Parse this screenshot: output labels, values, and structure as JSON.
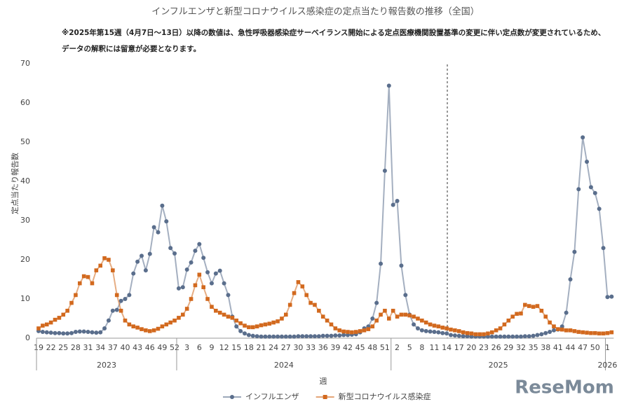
{
  "chart_data": {
    "type": "line",
    "title": "インフルエンザと新型コロナウイルス感染症の定点当たり報告数の推移（全国）",
    "notes": [
      "※2025年第15週（4月7日～13日）以降の数値は、急性呼吸器感染症サーベイランス開始による定点医療機関設置基準の変更に伴い定点数が変更されているため、",
      "データの解釈には留意が必要となります。"
    ],
    "y_label": "定点当たり報告数",
    "x_label": "週",
    "years": [
      "2023",
      "2024",
      "2025",
      "2026"
    ],
    "watermark": "ReseMom",
    "categories": [
      "19",
      null,
      null,
      "22",
      null,
      null,
      "25",
      null,
      null,
      "28",
      null,
      null,
      "31",
      null,
      null,
      "34",
      null,
      null,
      "37",
      null,
      null,
      "40",
      null,
      null,
      "43",
      null,
      null,
      "46",
      null,
      null,
      "49",
      null,
      null,
      "52",
      null,
      null,
      "3",
      null,
      null,
      "6",
      null,
      null,
      "9",
      null,
      null,
      "12",
      null,
      null,
      "15",
      null,
      null,
      "18",
      null,
      null,
      "21",
      null,
      null,
      "24",
      null,
      null,
      "27",
      null,
      null,
      "30",
      null,
      null,
      "33",
      null,
      null,
      "36",
      null,
      null,
      "39",
      null,
      null,
      "42",
      null,
      null,
      "45",
      null,
      null,
      "48",
      null,
      null,
      "51",
      null,
      null,
      "2",
      null,
      null,
      "5",
      null,
      null,
      "8",
      null,
      null,
      "11",
      null,
      null,
      "14",
      null,
      null,
      "17",
      null,
      null,
      "20",
      null,
      null,
      "23",
      null,
      null,
      "26",
      null,
      null,
      "29",
      null,
      null,
      "32",
      null,
      null,
      "35",
      null,
      null,
      "38",
      null,
      null,
      "41",
      null,
      null,
      "44",
      null,
      null,
      "47",
      null,
      null,
      "50",
      null,
      null,
      "1",
      null
    ],
    "series": [
      {
        "name": "インフルエンザ",
        "color": "#5a6e8c",
        "marker": "circle",
        "values": [
          1.8,
          1.6,
          1.5,
          1.4,
          1.3,
          1.3,
          1.2,
          1.2,
          1.3,
          1.6,
          1.7,
          1.7,
          1.6,
          1.5,
          1.4,
          1.5,
          2.5,
          4.5,
          7,
          7.2,
          9.5,
          10,
          11,
          16.5,
          19.5,
          21,
          17.3,
          21.5,
          28.3,
          27,
          33.8,
          29.8,
          23,
          21.6,
          12.7,
          13,
          17.5,
          19.3,
          22.3,
          24,
          20.5,
          16.8,
          14,
          16.5,
          17.2,
          14,
          11,
          5.5,
          3,
          1.8,
          1.2,
          0.8,
          0.6,
          0.5,
          0.4,
          0.4,
          0.4,
          0.4,
          0.4,
          0.4,
          0.4,
          0.4,
          0.4,
          0.5,
          0.5,
          0.5,
          0.5,
          0.5,
          0.5,
          0.6,
          0.6,
          0.6,
          0.7,
          0.7,
          0.8,
          0.8,
          0.9,
          1,
          1.5,
          2.5,
          3,
          5,
          9,
          19,
          42.7,
          64.4,
          34,
          35,
          18.5,
          11,
          6,
          3.5,
          2.5,
          2,
          1.8,
          1.7,
          1.6,
          1.5,
          1.3,
          1.2,
          0.8,
          0.7,
          0.6,
          0.5,
          0.5,
          0.4,
          0.4,
          0.4,
          0.4,
          0.4,
          0.4,
          0.4,
          0.4,
          0.4,
          0.4,
          0.4,
          0.4,
          0.4,
          0.5,
          0.5,
          0.6,
          0.8,
          1,
          1.3,
          1.6,
          2,
          2.2,
          3,
          6.5,
          15,
          22,
          38,
          51.2,
          45,
          38.5,
          37,
          33,
          23,
          10.5,
          10.6
        ]
      },
      {
        "name": "新型コロナウイルス感染症",
        "color": "#d2691e",
        "marker": "square",
        "values": [
          2.5,
          3.2,
          3.5,
          4,
          4.7,
          5.2,
          6,
          7,
          9,
          11,
          14,
          15.8,
          15.6,
          14,
          17.3,
          18.5,
          20.4,
          20,
          17.3,
          11,
          7,
          4.5,
          3.5,
          3,
          2.7,
          2.3,
          2,
          1.8,
          2,
          2.4,
          3,
          3.5,
          4,
          4.5,
          5.2,
          6,
          7.5,
          10,
          13.5,
          16.2,
          13,
          10,
          8,
          7,
          6.5,
          6,
          5.5,
          5.2,
          4.5,
          3.8,
          3.2,
          2.8,
          2.8,
          3,
          3.3,
          3.5,
          3.7,
          4,
          4.3,
          5,
          6,
          8.5,
          11.5,
          14.3,
          13.2,
          11,
          9,
          8.5,
          7,
          5.5,
          4.5,
          3.5,
          2.5,
          2,
          1.7,
          1.6,
          1.5,
          1.6,
          1.8,
          2,
          2.3,
          3,
          4.5,
          6,
          7,
          5,
          7,
          5.5,
          6,
          6,
          5.8,
          5.5,
          5,
          4.5,
          4,
          3.5,
          3.2,
          3,
          2.7,
          2.5,
          2.2,
          2,
          1.8,
          1.5,
          1.3,
          1.2,
          1,
          1,
          1,
          1.2,
          1.5,
          2,
          2.5,
          3.5,
          4.5,
          5.5,
          6.2,
          6.3,
          8.5,
          8.2,
          8,
          8.2,
          7,
          5.5,
          4,
          3,
          2.3,
          2.2,
          2,
          2,
          1.8,
          1.6,
          1.5,
          1.4,
          1.3,
          1.3,
          1.2,
          1.2,
          1.3,
          1.5
        ]
      }
    ],
    "ylim": [
      0,
      70
    ],
    "yticks": [
      0,
      10,
      20,
      30,
      40,
      50,
      60,
      70
    ],
    "grid": false,
    "legend": "bottom"
  }
}
